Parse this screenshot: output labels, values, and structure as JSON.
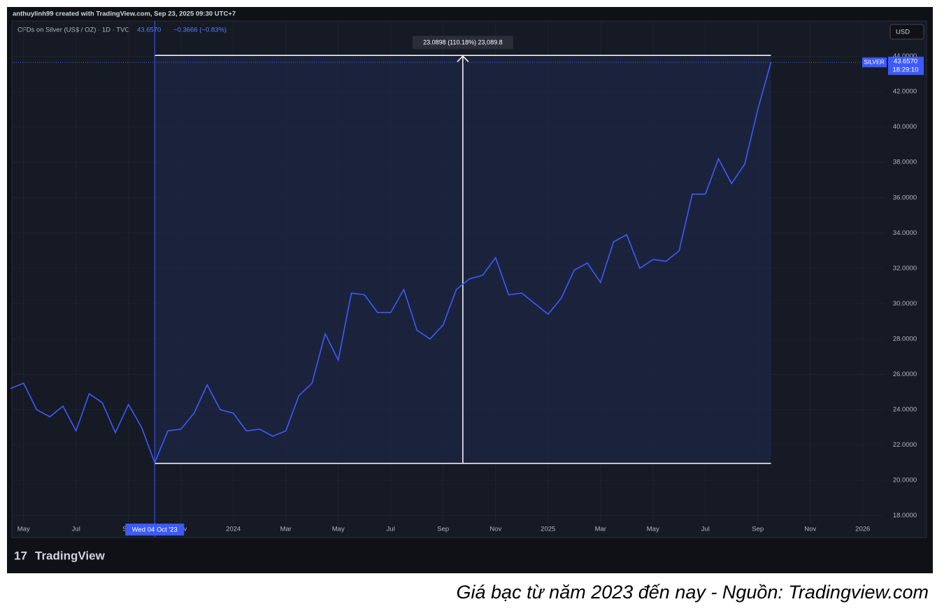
{
  "header": {
    "credit": "anthuylinh99 created with TradingView.com, Sep 23, 2025 09:30 UTC+7",
    "symbol": "CFDs on Silver (US$ / OZ) · 1D · TVC",
    "change": "−0.3666 (−0.83%)",
    "currency": "USD",
    "brand": "TradingView"
  },
  "caption": "Giá bạc từ năm 2023 đến nay - Nguồn: Tradingview.com",
  "chart_data": {
    "type": "line",
    "color": "#3d5afe",
    "categories": [
      null,
      "May",
      null,
      null,
      null,
      "Jul",
      null,
      null,
      null,
      "Sep",
      null,
      null,
      null,
      "Nov",
      null,
      null,
      null,
      "2024",
      null,
      null,
      null,
      "Mar",
      null,
      null,
      null,
      "May",
      null,
      null,
      null,
      "Jul",
      null,
      null,
      null,
      "Sep",
      null,
      null,
      null,
      "Nov",
      null,
      null,
      null,
      "2025",
      null,
      null,
      null,
      "Mar",
      null,
      null,
      null,
      "May",
      null,
      null,
      null,
      "Jul",
      null,
      null,
      null,
      "Sep",
      null,
      null,
      null,
      "Nov",
      null,
      null,
      null,
      "2026",
      null
    ],
    "values": [
      25.2,
      25.5,
      24.0,
      23.6,
      24.2,
      22.8,
      24.9,
      24.4,
      22.7,
      24.3,
      23.0,
      21.0,
      22.8,
      22.9,
      23.8,
      25.4,
      24.0,
      23.8,
      22.8,
      22.9,
      22.5,
      22.8,
      24.8,
      25.5,
      28.3,
      26.8,
      30.6,
      30.5,
      29.5,
      29.5,
      30.8,
      28.5,
      28.0,
      28.8,
      30.8,
      31.4,
      31.6,
      32.6,
      30.5,
      30.6,
      30.0,
      29.4,
      30.3,
      31.9,
      32.3,
      31.2,
      33.5,
      33.9,
      32.0,
      32.5,
      32.4,
      33.0,
      36.2,
      36.2,
      38.2,
      36.8,
      37.9,
      41.0,
      43.66,
      null,
      null,
      null,
      null,
      null,
      null,
      null,
      null
    ],
    "ylim": [
      16.8,
      46.0
    ],
    "yticks": [
      {
        "value": 18,
        "label": "18.0000"
      },
      {
        "value": 20,
        "label": "20.0000"
      },
      {
        "value": 22,
        "label": "22.0000"
      },
      {
        "value": 24,
        "label": "24.0000"
      },
      {
        "value": 26,
        "label": "26.0000"
      },
      {
        "value": 28,
        "label": "28.0000"
      },
      {
        "value": 30,
        "label": "30.0000"
      },
      {
        "value": 32,
        "label": "32.0000"
      },
      {
        "value": 34,
        "label": "34.0000"
      },
      {
        "value": 36,
        "label": "36.0000"
      },
      {
        "value": 38,
        "label": "38.0000"
      },
      {
        "value": 40,
        "label": "40.0000"
      },
      {
        "value": 42,
        "label": "42.0000"
      },
      {
        "value": 44,
        "label": "44.0000"
      }
    ],
    "grid": true,
    "price_tag": {
      "value": 43.657,
      "label": "43.6570",
      "symbol": "SILVER",
      "countdown": "18:29:10"
    },
    "measure": {
      "from": 20.96,
      "to": 44.05,
      "label": "23.0898 (110.18%) 23,089.8"
    },
    "crosshair": {
      "label": "Wed 04 Oct '23"
    }
  }
}
